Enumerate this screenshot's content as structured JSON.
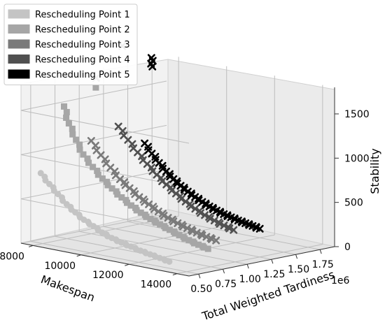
{
  "chart_data": {
    "type": "scatter",
    "projection": "3d",
    "axes": {
      "x": {
        "label": "Makespan",
        "ticks": [
          "8000",
          "10000",
          "12000",
          "14000"
        ],
        "lim": [
          7500,
          14500
        ]
      },
      "y": {
        "label": "Total Weighted Tardiness",
        "ticks": [
          "0.50",
          "0.75",
          "1.00",
          "1.25",
          "1.50",
          "1.75"
        ],
        "offset_text": "1e6",
        "lim": [
          0.4,
          1.9
        ]
      },
      "z": {
        "label": "Stability",
        "ticks": [
          "0",
          "500",
          "1000",
          "1500"
        ],
        "lim": [
          0,
          1800
        ]
      }
    },
    "grid": true,
    "legend_position": "top-left",
    "series": [
      {
        "name": "Rescheduling Point 1",
        "marker": "circle",
        "color": "#c4c4c4",
        "points": [
          [
            8000,
            0.48,
            800
          ],
          [
            8400,
            0.47,
            700
          ],
          [
            8800,
            0.46,
            610
          ],
          [
            9200,
            0.45,
            520
          ],
          [
            9600,
            0.44,
            450
          ],
          [
            10000,
            0.43,
            390
          ],
          [
            10400,
            0.43,
            340
          ],
          [
            10800,
            0.42,
            290
          ],
          [
            11200,
            0.42,
            250
          ],
          [
            11600,
            0.42,
            220
          ],
          [
            12000,
            0.42,
            195
          ],
          [
            12400,
            0.42,
            170
          ],
          [
            12800,
            0.42,
            150
          ],
          [
            13200,
            0.42,
            130
          ],
          [
            13600,
            0.42,
            110
          ]
        ]
      },
      {
        "name": "Rescheduling Point 2",
        "marker": "square",
        "color": "#a6a6a6",
        "points": [
          [
            8000,
            0.72,
            1500
          ],
          [
            8200,
            0.72,
            1320
          ],
          [
            8500,
            0.72,
            1150
          ],
          [
            8800,
            0.72,
            1000
          ],
          [
            9200,
            0.72,
            880
          ],
          [
            9600,
            0.72,
            770
          ],
          [
            10000,
            0.72,
            680
          ],
          [
            10400,
            0.72,
            600
          ],
          [
            10800,
            0.72,
            530
          ],
          [
            11200,
            0.72,
            470
          ],
          [
            11600,
            0.72,
            420
          ],
          [
            12000,
            0.72,
            380
          ],
          [
            12400,
            0.72,
            340
          ],
          [
            12800,
            0.72,
            300
          ],
          [
            13200,
            0.72,
            265
          ],
          [
            13600,
            0.72,
            235
          ],
          [
            14000,
            0.72,
            210
          ],
          [
            9000,
            0.8,
            1750
          ]
        ]
      },
      {
        "name": "Rescheduling Point 3",
        "marker": "x",
        "color": "#7a7a7a",
        "points": [
          [
            8000,
            1.0,
            1050
          ],
          [
            8400,
            1.0,
            910
          ],
          [
            8800,
            1.0,
            790
          ],
          [
            9200,
            1.0,
            680
          ],
          [
            9600,
            1.0,
            600
          ],
          [
            10000,
            1.0,
            520
          ],
          [
            10400,
            1.0,
            460
          ],
          [
            10800,
            1.0,
            400
          ],
          [
            11200,
            1.0,
            350
          ],
          [
            11600,
            1.0,
            310
          ],
          [
            12000,
            1.0,
            275
          ],
          [
            12400,
            1.0,
            245
          ],
          [
            12800,
            1.0,
            220
          ],
          [
            13200,
            1.0,
            200
          ],
          [
            8000,
            1.05,
            1750
          ]
        ]
      },
      {
        "name": "Rescheduling Point 4",
        "marker": "x",
        "color": "#505050",
        "points": [
          [
            8000,
            1.28,
            1150
          ],
          [
            8400,
            1.28,
            1020
          ],
          [
            8800,
            1.28,
            900
          ],
          [
            9200,
            1.28,
            790
          ],
          [
            9600,
            1.28,
            690
          ],
          [
            10000,
            1.28,
            600
          ],
          [
            10400,
            1.28,
            520
          ],
          [
            10800,
            1.28,
            450
          ],
          [
            11200,
            1.28,
            390
          ],
          [
            11600,
            1.28,
            340
          ],
          [
            12000,
            1.28,
            300
          ],
          [
            12400,
            1.28,
            265
          ],
          [
            12800,
            1.28,
            235
          ],
          [
            8000,
            1.32,
            2050
          ]
        ]
      },
      {
        "name": "Rescheduling Point 5",
        "marker": "x",
        "color": "#000000",
        "points": [
          [
            8000,
            1.55,
            900
          ],
          [
            8300,
            1.55,
            800
          ],
          [
            8600,
            1.55,
            710
          ],
          [
            8900,
            1.55,
            630
          ],
          [
            9200,
            1.55,
            560
          ],
          [
            9500,
            1.55,
            500
          ],
          [
            9800,
            1.55,
            450
          ],
          [
            10100,
            1.55,
            405
          ],
          [
            10400,
            1.55,
            365
          ],
          [
            10700,
            1.55,
            330
          ],
          [
            11000,
            1.55,
            300
          ],
          [
            11300,
            1.55,
            275
          ],
          [
            11600,
            1.55,
            255
          ],
          [
            11900,
            1.55,
            235
          ],
          [
            12200,
            1.55,
            220
          ],
          [
            12500,
            1.55,
            205
          ],
          [
            12800,
            1.55,
            190
          ],
          [
            8000,
            1.62,
            1850
          ],
          [
            8000,
            1.63,
            1750
          ]
        ]
      }
    ]
  }
}
